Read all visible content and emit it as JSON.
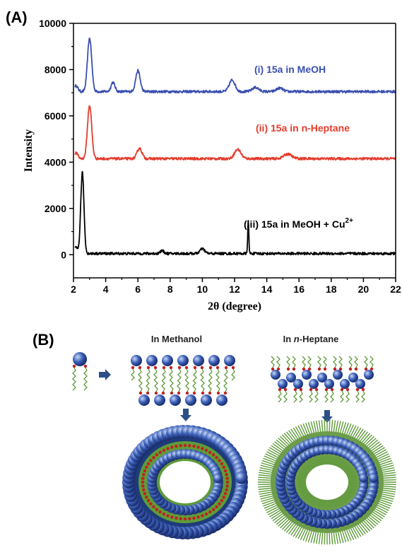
{
  "panel_a_label": "(A)",
  "panel_b_label": "(B)",
  "chart_data": {
    "type": "line",
    "xlabel": "2θ (degree)",
    "ylabel": "Intensity",
    "xlim": [
      2,
      22
    ],
    "ylim": [
      -1000,
      10000
    ],
    "xticks": [
      2,
      4,
      6,
      8,
      10,
      12,
      14,
      16,
      18,
      20,
      22
    ],
    "yticks": [
      0,
      2000,
      4000,
      6000,
      8000,
      10000
    ],
    "grid": false,
    "series": [
      {
        "name": "(i) 15a in MeOH",
        "color": "#3a4fb0",
        "baseline": 7050,
        "peaks": [
          {
            "x": 3.0,
            "height": 2300,
            "width": 0.13
          },
          {
            "x": 4.45,
            "height": 400,
            "width": 0.12
          },
          {
            "x": 6.0,
            "height": 900,
            "width": 0.14
          },
          {
            "x": 11.85,
            "height": 500,
            "width": 0.18
          },
          {
            "x": 13.3,
            "height": 180,
            "width": 0.2
          },
          {
            "x": 14.8,
            "height": 150,
            "width": 0.2
          }
        ]
      },
      {
        "name": "(ii) 15a in n-Heptane",
        "color": "#e53b2c",
        "baseline": 4150,
        "peaks": [
          {
            "x": 3.0,
            "height": 2300,
            "width": 0.13
          },
          {
            "x": 6.1,
            "height": 450,
            "width": 0.15
          },
          {
            "x": 12.2,
            "height": 400,
            "width": 0.2
          },
          {
            "x": 15.3,
            "height": 200,
            "width": 0.25
          }
        ]
      },
      {
        "name_main": "(iii) 15a in MeOH + Cu",
        "name_sup": "2+",
        "color": "#000000",
        "baseline": 50,
        "peaks": [
          {
            "x": 2.55,
            "height": 3500,
            "width": 0.1
          },
          {
            "x": 7.5,
            "height": 120,
            "width": 0.12
          },
          {
            "x": 10.0,
            "height": 200,
            "width": 0.15
          },
          {
            "x": 12.85,
            "height": 1400,
            "width": 0.035
          }
        ]
      }
    ]
  },
  "schematic": {
    "methanol_label": "In Methanol",
    "heptane_prefix": "In ",
    "heptane_italic": "n",
    "heptane_suffix": "-Heptane",
    "colors": {
      "sphere": "#3a5fb8",
      "chain": "#5f9b3a",
      "linker": "#c02020",
      "arrow": "#2d4f86"
    }
  }
}
